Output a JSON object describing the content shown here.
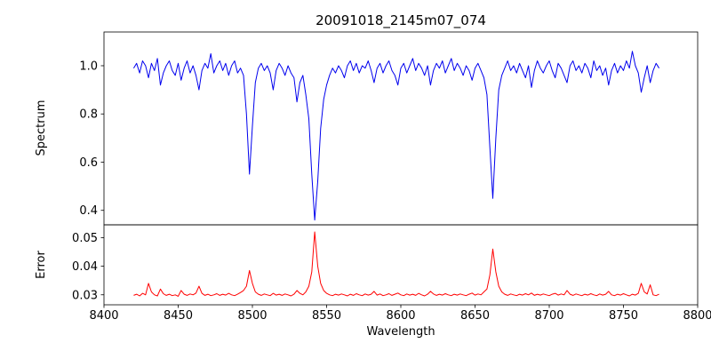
{
  "figure": {
    "title": "20091018_2145m07_074"
  },
  "chart_data": {
    "type": "line",
    "title": "20091018_2145m07_074",
    "xlabel": "Wavelength",
    "xlim": [
      8400,
      8800
    ],
    "x_ticks": [
      8400,
      8450,
      8500,
      8550,
      8600,
      8650,
      8700,
      8750,
      8800
    ],
    "x_tick_labels": [
      "8400",
      "8450",
      "8500",
      "8550",
      "8600",
      "8650",
      "8700",
      "8750",
      "8800"
    ],
    "grid": false,
    "legend": "none",
    "panels": [
      {
        "name": "spectrum",
        "ylabel": "Spectrum",
        "ylim": [
          0.34,
          1.14
        ],
        "y_ticks": [
          0.4,
          0.6,
          0.8,
          1.0
        ],
        "y_tick_labels": [
          "0.4",
          "0.6",
          "0.8",
          "1.0"
        ],
        "color": "#0000ee",
        "x_start": 8420,
        "x_step": 2,
        "absorption_line_centers": [
          8498,
          8542,
          8662
        ],
        "values": [
          0.99,
          1.01,
          0.97,
          1.02,
          1.0,
          0.95,
          1.01,
          0.98,
          1.03,
          0.92,
          0.97,
          1.0,
          1.02,
          0.98,
          0.96,
          1.01,
          0.94,
          0.99,
          1.02,
          0.97,
          1.0,
          0.96,
          0.9,
          0.98,
          1.01,
          0.99,
          1.05,
          0.97,
          1.0,
          1.02,
          0.98,
          1.01,
          0.96,
          1.0,
          1.02,
          0.97,
          0.99,
          0.96,
          0.8,
          0.55,
          0.75,
          0.93,
          0.99,
          1.01,
          0.98,
          1.0,
          0.97,
          0.9,
          0.98,
          1.01,
          0.99,
          0.96,
          1.0,
          0.97,
          0.95,
          0.85,
          0.93,
          0.96,
          0.88,
          0.78,
          0.55,
          0.36,
          0.52,
          0.74,
          0.86,
          0.92,
          0.96,
          0.99,
          0.97,
          1.0,
          0.98,
          0.95,
          1.0,
          1.02,
          0.98,
          1.01,
          0.97,
          1.0,
          0.99,
          1.02,
          0.98,
          0.93,
          0.99,
          1.01,
          0.97,
          1.0,
          1.02,
          0.98,
          0.96,
          0.92,
          0.99,
          1.01,
          0.97,
          1.0,
          1.03,
          0.98,
          1.01,
          0.99,
          0.96,
          1.0,
          0.92,
          0.98,
          1.01,
          0.99,
          1.02,
          0.97,
          1.0,
          1.03,
          0.98,
          1.01,
          0.99,
          0.96,
          1.0,
          0.98,
          0.94,
          0.99,
          1.01,
          0.98,
          0.95,
          0.88,
          0.66,
          0.45,
          0.7,
          0.9,
          0.96,
          0.99,
          1.02,
          0.98,
          1.0,
          0.97,
          1.01,
          0.98,
          0.95,
          1.0,
          0.91,
          0.98,
          1.02,
          0.99,
          0.97,
          1.0,
          1.02,
          0.98,
          0.95,
          1.01,
          0.99,
          0.96,
          0.93,
          1.0,
          1.02,
          0.98,
          1.0,
          0.97,
          1.01,
          0.99,
          0.95,
          1.02,
          0.98,
          1.0,
          0.96,
          0.99,
          0.92,
          0.98,
          1.01,
          0.97,
          1.0,
          0.98,
          1.02,
          0.99,
          1.06,
          1.0,
          0.97,
          0.89,
          0.95,
          1.0,
          0.93,
          0.98,
          1.01,
          0.99
        ]
      },
      {
        "name": "error",
        "ylabel": "Error",
        "ylim": [
          0.0265,
          0.0545
        ],
        "y_ticks": [
          0.03,
          0.04,
          0.05
        ],
        "y_tick_labels": [
          "0.03",
          "0.04",
          "0.05"
        ],
        "color": "#ff0000",
        "x_start": 8420,
        "x_step": 2,
        "values": [
          0.0298,
          0.0302,
          0.0296,
          0.0305,
          0.03,
          0.034,
          0.031,
          0.03,
          0.0296,
          0.032,
          0.0304,
          0.0298,
          0.0302,
          0.0297,
          0.03,
          0.0295,
          0.0315,
          0.0302,
          0.0298,
          0.0303,
          0.03,
          0.0306,
          0.033,
          0.0305,
          0.0298,
          0.0302,
          0.0297,
          0.03,
          0.0304,
          0.0298,
          0.0302,
          0.0299,
          0.0305,
          0.03,
          0.0297,
          0.0302,
          0.0308,
          0.0315,
          0.033,
          0.0385,
          0.034,
          0.031,
          0.0302,
          0.0298,
          0.0303,
          0.03,
          0.0297,
          0.0305,
          0.0299,
          0.0302,
          0.0298,
          0.0303,
          0.03,
          0.0296,
          0.0302,
          0.0315,
          0.0305,
          0.03,
          0.031,
          0.033,
          0.038,
          0.052,
          0.04,
          0.034,
          0.0315,
          0.0305,
          0.03,
          0.0297,
          0.0302,
          0.0299,
          0.0303,
          0.03,
          0.0296,
          0.0302,
          0.0298,
          0.0304,
          0.03,
          0.0297,
          0.0303,
          0.0299,
          0.0302,
          0.0312,
          0.0299,
          0.0303,
          0.0297,
          0.03,
          0.0304,
          0.0298,
          0.0302,
          0.0306,
          0.03,
          0.0297,
          0.0303,
          0.0299,
          0.0302,
          0.0298,
          0.0305,
          0.03,
          0.0296,
          0.0302,
          0.0312,
          0.0303,
          0.0298,
          0.0302,
          0.0299,
          0.0304,
          0.03,
          0.0297,
          0.0302,
          0.0299,
          0.0303,
          0.03,
          0.0297,
          0.0302,
          0.0306,
          0.0299,
          0.0303,
          0.03,
          0.031,
          0.032,
          0.037,
          0.046,
          0.038,
          0.033,
          0.031,
          0.0302,
          0.0298,
          0.0303,
          0.03,
          0.0297,
          0.0302,
          0.0299,
          0.0304,
          0.03,
          0.0306,
          0.0298,
          0.0302,
          0.0299,
          0.0303,
          0.03,
          0.0297,
          0.0302,
          0.0305,
          0.0299,
          0.0303,
          0.03,
          0.0315,
          0.0302,
          0.0298,
          0.0303,
          0.03,
          0.0297,
          0.0302,
          0.0299,
          0.0304,
          0.03,
          0.0297,
          0.0303,
          0.0299,
          0.0302,
          0.0312,
          0.03,
          0.0297,
          0.0302,
          0.0299,
          0.0304,
          0.03,
          0.0296,
          0.0302,
          0.0299,
          0.0305,
          0.034,
          0.031,
          0.0303,
          0.0335,
          0.03,
          0.0297,
          0.0302
        ]
      }
    ]
  }
}
